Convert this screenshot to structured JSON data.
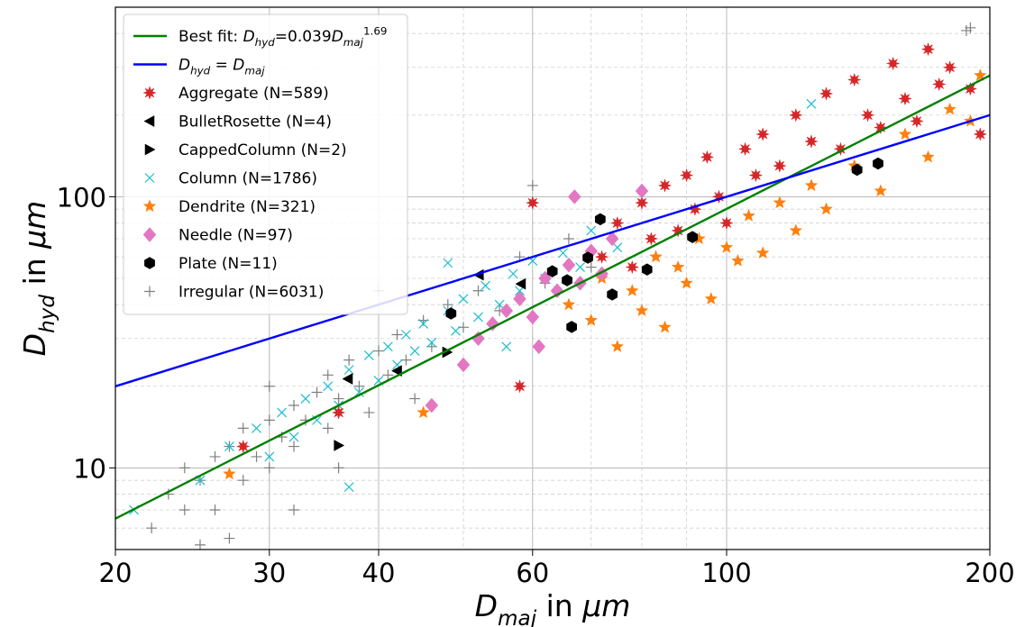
{
  "chart_data": {
    "type": "scatter",
    "xscale": "log",
    "yscale": "log",
    "xlim": [
      20,
      200
    ],
    "ylim": [
      5,
      500
    ],
    "xticks": [
      20,
      30,
      40,
      60,
      100,
      200
    ],
    "yticks": [
      10,
      100
    ],
    "minor_xticks": [
      50,
      70,
      80,
      90
    ],
    "minor_yticks": [
      6,
      7,
      8,
      9,
      20,
      30,
      40,
      50,
      60,
      70,
      80,
      90,
      200,
      300,
      400
    ],
    "grid": true,
    "legend": "upper left",
    "xlabel": [
      {
        "t": "D",
        "k": "i"
      },
      {
        "t": "maj",
        "k": "sub"
      },
      {
        "t": " in ",
        "k": "n"
      },
      {
        "t": "μm",
        "k": "i"
      }
    ],
    "ylabel": [
      {
        "t": "D",
        "k": "i"
      },
      {
        "t": "hyd",
        "k": "sub"
      },
      {
        "t": " in ",
        "k": "n"
      },
      {
        "t": "μm",
        "k": "i"
      }
    ],
    "series": [
      {
        "name": [
          {
            "t": "Best fit: ",
            "k": "n"
          },
          {
            "t": "D",
            "k": "i"
          },
          {
            "t": "hyd",
            "k": "sub"
          },
          {
            "t": "=0.039",
            "k": "n"
          },
          {
            "t": "D",
            "k": "i"
          },
          {
            "t": "maj",
            "k": "sub"
          },
          {
            "t": "1.69",
            "k": "sup"
          }
        ],
        "kind": "line",
        "color": "#008000",
        "x": [
          20,
          200
        ],
        "values": [
          6.5,
          280
        ]
      },
      {
        "name": [
          {
            "t": "D",
            "k": "i"
          },
          {
            "t": "hyd",
            "k": "sub"
          },
          {
            "t": " = ",
            "k": "n"
          },
          {
            "t": "D",
            "k": "i"
          },
          {
            "t": "maj",
            "k": "sub"
          }
        ],
        "kind": "line",
        "color": "#0000ff",
        "x": [
          20,
          200
        ],
        "values": [
          20,
          200
        ]
      },
      {
        "name": [
          {
            "t": "Aggregate (N=589)",
            "k": "n"
          }
        ],
        "kind": "scatter",
        "marker": "burst",
        "color": "#d62728",
        "x": [
          72,
          75,
          78,
          80,
          82,
          85,
          88,
          90,
          92,
          95,
          98,
          100,
          105,
          108,
          110,
          115,
          120,
          125,
          130,
          135,
          140,
          145,
          150,
          155,
          160,
          165,
          170,
          175,
          180,
          190,
          195,
          60,
          28,
          36,
          58
        ],
        "values": [
          60,
          80,
          55,
          95,
          70,
          110,
          75,
          120,
          90,
          140,
          100,
          80,
          150,
          120,
          170,
          130,
          200,
          160,
          240,
          150,
          270,
          200,
          180,
          310,
          230,
          190,
          350,
          260,
          300,
          250,
          170,
          95,
          12,
          16,
          20
        ]
      },
      {
        "name": [
          {
            "t": "BulletRosette (N=4)",
            "k": "n"
          }
        ],
        "kind": "scatter",
        "marker": "tri-left",
        "color": "#000000",
        "x": [
          36.9,
          42.0,
          52.1,
          58.2
        ],
        "values": [
          21.3,
          22.8,
          51.5,
          47.7
        ]
      },
      {
        "name": [
          {
            "t": "CappedColumn (N=2)",
            "k": "n"
          }
        ],
        "kind": "scatter",
        "marker": "tri-right",
        "color": "#000000",
        "x": [
          36.0,
          47.9
        ],
        "values": [
          12.1,
          26.7
        ]
      },
      {
        "name": [
          {
            "t": "Column (N=1786)",
            "k": "n"
          }
        ],
        "kind": "scatter",
        "marker": "x",
        "color": "#17becf",
        "x": [
          21,
          25,
          27,
          29,
          30,
          31,
          32,
          33,
          34,
          35,
          36,
          37,
          38,
          39,
          40,
          41,
          42,
          43,
          44,
          45,
          46,
          48,
          49,
          50,
          52,
          53,
          55,
          57,
          58,
          60,
          62,
          65,
          68,
          70,
          75,
          125,
          37,
          48,
          56
        ],
        "values": [
          7,
          9,
          12,
          14,
          11,
          16,
          13,
          18,
          15,
          20,
          17,
          23,
          19,
          26,
          21,
          28,
          24,
          31,
          27,
          34,
          29,
          38,
          32,
          42,
          36,
          47,
          40,
          52,
          45,
          58,
          50,
          62,
          55,
          75,
          65,
          220,
          8.5,
          57,
          28
        ]
      },
      {
        "name": [
          {
            "t": "Dendrite (N=321)",
            "k": "n"
          }
        ],
        "kind": "scatter",
        "marker": "star",
        "color": "#ff7f0e",
        "x": [
          66,
          70,
          72,
          75,
          78,
          80,
          83,
          85,
          88,
          90,
          93,
          96,
          100,
          103,
          106,
          110,
          115,
          120,
          125,
          130,
          140,
          150,
          160,
          170,
          180,
          190,
          195,
          27,
          45
        ],
        "values": [
          40,
          35,
          50,
          28,
          45,
          38,
          60,
          33,
          55,
          48,
          70,
          42,
          65,
          58,
          85,
          62,
          95,
          75,
          110,
          90,
          130,
          105,
          170,
          140,
          210,
          190,
          280,
          9.5,
          16
        ]
      },
      {
        "name": [
          {
            "t": "Needle (N=97)",
            "k": "n"
          }
        ],
        "kind": "scatter",
        "marker": "diamond",
        "color": "#e377c2",
        "x": [
          46,
          50,
          52,
          54,
          56,
          58,
          60,
          62,
          64,
          66,
          68,
          70,
          72,
          74,
          67,
          80,
          61
        ],
        "values": [
          17,
          24,
          30,
          34,
          38,
          42,
          36,
          50,
          45,
          56,
          48,
          63,
          52,
          70,
          100,
          105,
          28
        ]
      },
      {
        "name": [
          {
            "t": "Plate (N=11)",
            "k": "n"
          }
        ],
        "kind": "scatter",
        "marker": "hexagon",
        "color": "#000000",
        "x": [
          48.4,
          63.2,
          65.7,
          66.5,
          69.4,
          71.7,
          74.0,
          81.1,
          91.4,
          141,
          149
        ],
        "values": [
          37.1,
          53.1,
          49.2,
          33.1,
          59.6,
          82.6,
          43.6,
          53.9,
          71.0,
          125.7,
          132.6
        ]
      },
      {
        "name": [
          {
            "t": "Irregular (N=6031)",
            "k": "n"
          }
        ],
        "kind": "scatter",
        "marker": "plus",
        "color": "#7f7f7f",
        "x": [
          22,
          23,
          24,
          24,
          25,
          26,
          26,
          27,
          28,
          28,
          29,
          30,
          30,
          31,
          32,
          32,
          33,
          34,
          35,
          35,
          36,
          37,
          38,
          39,
          40,
          41,
          42,
          43,
          45,
          46,
          48,
          50,
          52,
          55,
          58,
          62,
          66,
          70,
          60,
          40,
          190,
          188,
          25,
          27,
          32,
          30,
          44,
          36
        ],
        "values": [
          6,
          8,
          7,
          10,
          9,
          11,
          7,
          12,
          9,
          14,
          11,
          15,
          10,
          13,
          17,
          12,
          15,
          19,
          14,
          22,
          18,
          25,
          20,
          16,
          27,
          22,
          31,
          25,
          35,
          28,
          40,
          33,
          45,
          38,
          60,
          48,
          70,
          55,
          110,
          45,
          420,
          410,
          5.2,
          5.5,
          7,
          20,
          18,
          10
        ]
      }
    ]
  }
}
